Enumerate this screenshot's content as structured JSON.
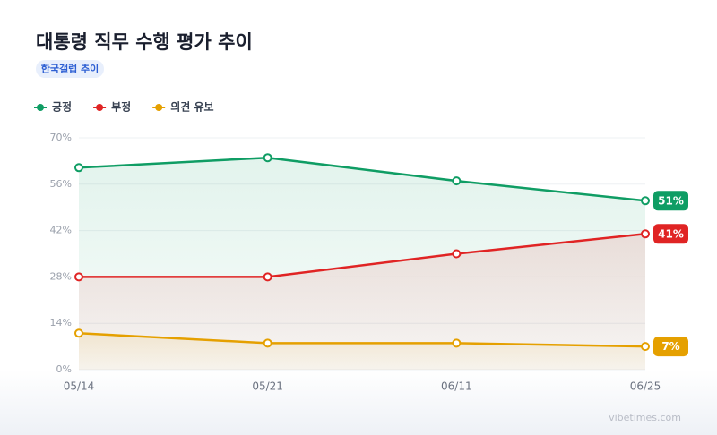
{
  "chart_data": {
    "type": "line",
    "title": "대통령 직무 수행 평가 추이",
    "subtitle": "한국갤럽 추이",
    "source": "vibetimes.com",
    "categories": [
      "05/14",
      "05/21",
      "06/11",
      "06/25"
    ],
    "series": [
      {
        "name": "긍정",
        "color": "#0f9d64",
        "values": [
          61,
          64,
          57,
          51
        ],
        "value_labels": [
          "51%"
        ]
      },
      {
        "name": "부정",
        "color": "#e02424",
        "values": [
          28,
          28,
          35,
          41
        ],
        "value_labels": [
          "41%"
        ]
      },
      {
        "name": "의견 유보",
        "color": "#e5a000",
        "values": [
          11,
          8,
          8,
          7
        ],
        "value_labels": [
          "7%"
        ]
      }
    ],
    "ylim": [
      0,
      70
    ],
    "yticks": [
      {
        "value": 0,
        "label": "0%"
      },
      {
        "value": 14,
        "label": "14%"
      },
      {
        "value": 28,
        "label": "28%"
      },
      {
        "value": 42,
        "label": "42%"
      },
      {
        "value": 56,
        "label": "56%"
      },
      {
        "value": 70,
        "label": "70%"
      }
    ],
    "grid": true
  }
}
